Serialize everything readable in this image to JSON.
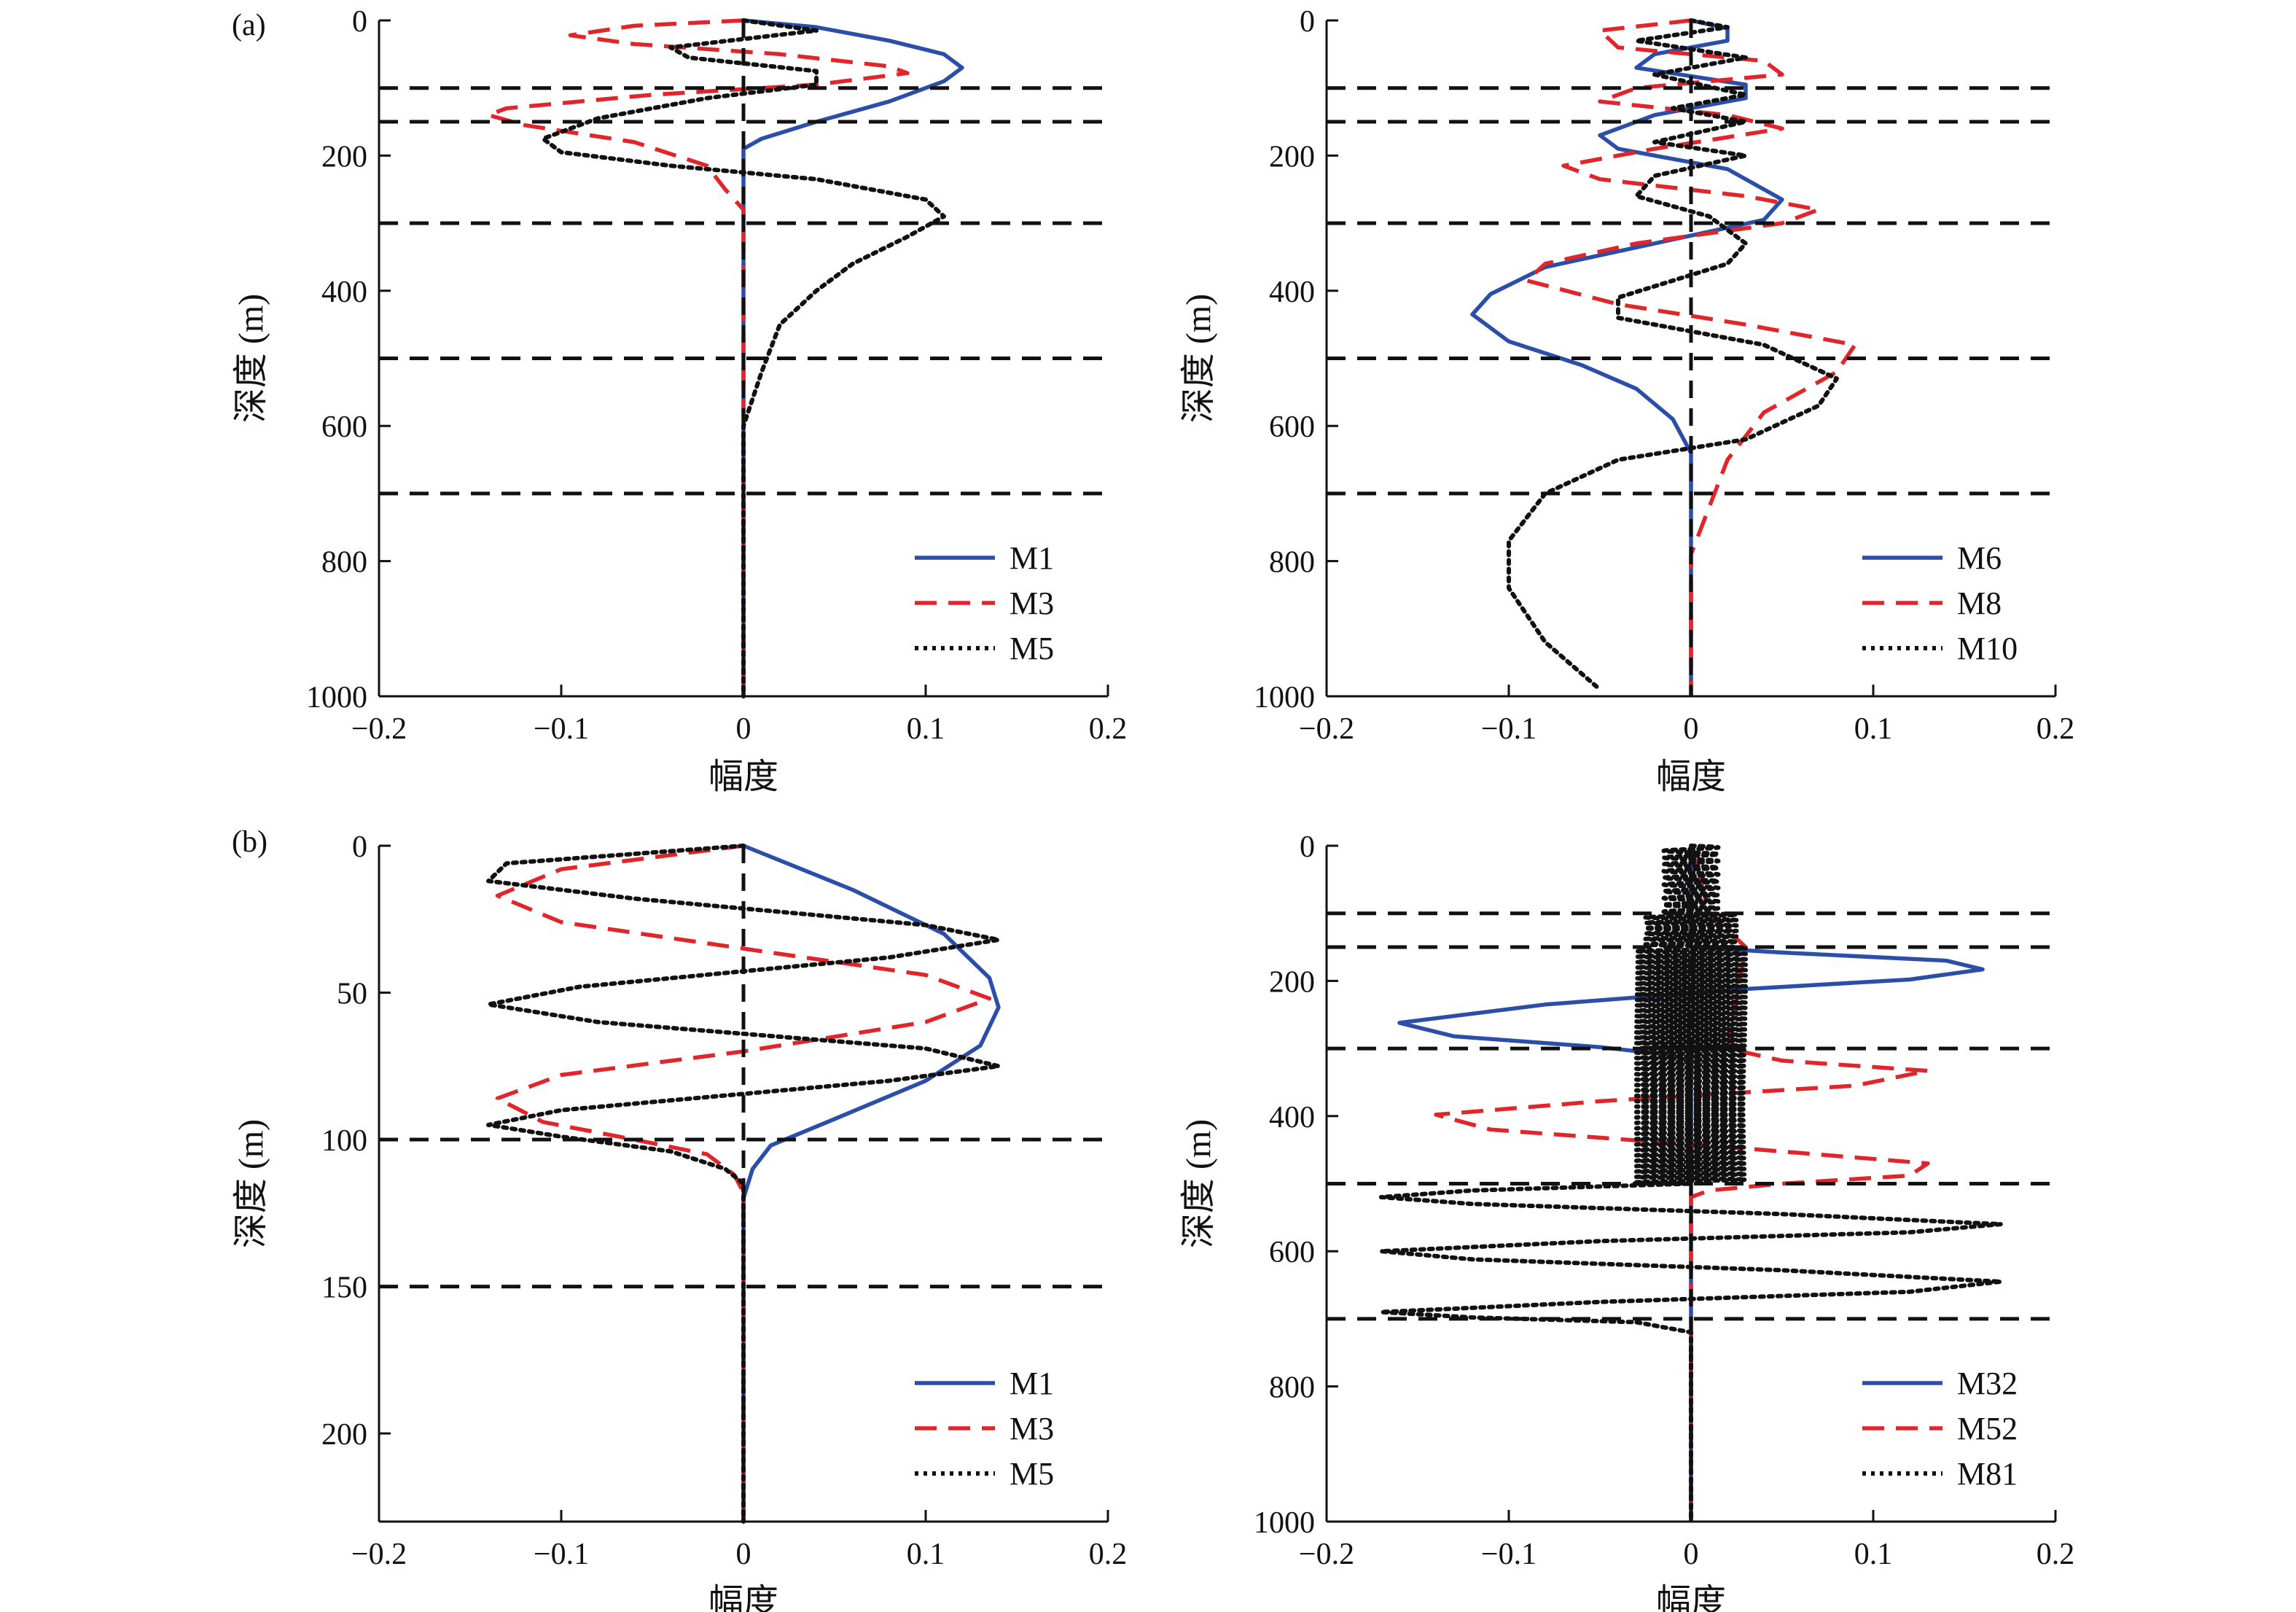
{
  "figure_labels": [
    "(a)",
    "(b)"
  ],
  "colors": {
    "M_solid": "#2b4fa8",
    "M_dashed": "#e0262b",
    "M_dotted": "#111111",
    "boundary": "#111111",
    "axis": "#111111"
  },
  "chart_data": [
    {
      "id": "a-left",
      "type": "line",
      "panel_label": "(a)",
      "xlabel": "幅度",
      "ylabel": "深度 (m)",
      "xlim": [
        -0.2,
        0.2
      ],
      "ylim": [
        0,
        1000
      ],
      "y_inverted": true,
      "xticks": [
        "−0.2",
        "−0.1",
        "0",
        "0.1",
        "0.2"
      ],
      "yticks": [
        "0",
        "200",
        "400",
        "600",
        "800",
        "1000"
      ],
      "boundaries": [
        100,
        150,
        300,
        500,
        700
      ],
      "legend_position": "lower-right",
      "series": [
        {
          "name": "M1",
          "style": "solid",
          "points": [
            [
              0,
              0
            ],
            [
              0.04,
              10
            ],
            [
              0.08,
              30
            ],
            [
              0.11,
              50
            ],
            [
              0.12,
              70
            ],
            [
              0.11,
              90
            ],
            [
              0.08,
              120
            ],
            [
              0.04,
              150
            ],
            [
              0.01,
              175
            ],
            [
              0,
              190
            ],
            [
              0,
              1000
            ]
          ]
        },
        {
          "name": "M3",
          "style": "dashed",
          "points": [
            [
              0,
              0
            ],
            [
              -0.06,
              8
            ],
            [
              -0.095,
              22
            ],
            [
              -0.06,
              35
            ],
            [
              0.02,
              50
            ],
            [
              0.08,
              68
            ],
            [
              0.09,
              78
            ],
            [
              0.04,
              95
            ],
            [
              -0.05,
              110
            ],
            [
              -0.13,
              130
            ],
            [
              -0.14,
              140
            ],
            [
              -0.12,
              155
            ],
            [
              -0.06,
              180
            ],
            [
              -0.02,
              215
            ],
            [
              -0.01,
              250
            ],
            [
              0,
              280
            ],
            [
              0,
              1000
            ]
          ]
        },
        {
          "name": "M5",
          "style": "dotted",
          "points": [
            [
              0,
              0
            ],
            [
              0.04,
              15
            ],
            [
              -0.04,
              40
            ],
            [
              -0.03,
              55
            ],
            [
              0.04,
              75
            ],
            [
              0.04,
              95
            ],
            [
              -0.02,
              115
            ],
            [
              -0.08,
              145
            ],
            [
              -0.11,
              175
            ],
            [
              -0.1,
              195
            ],
            [
              -0.04,
              215
            ],
            [
              0.04,
              235
            ],
            [
              0.1,
              265
            ],
            [
              0.11,
              290
            ],
            [
              0.09,
              320
            ],
            [
              0.06,
              360
            ],
            [
              0.04,
              400
            ],
            [
              0.02,
              450
            ],
            [
              0.01,
              520
            ],
            [
              0,
              600
            ],
            [
              0,
              1000
            ]
          ]
        }
      ]
    },
    {
      "id": "a-right",
      "type": "line",
      "xlabel": "幅度",
      "ylabel": "深度 (m)",
      "xlim": [
        -0.2,
        0.2
      ],
      "ylim": [
        0,
        1000
      ],
      "y_inverted": true,
      "xticks": [
        "−0.2",
        "−0.1",
        "0",
        "0.1",
        "0.2"
      ],
      "yticks": [
        "0",
        "200",
        "400",
        "600",
        "800",
        "1000"
      ],
      "boundaries": [
        100,
        150,
        300,
        500,
        700
      ],
      "legend_position": "lower-right",
      "series": [
        {
          "name": "M6",
          "style": "solid",
          "points": [
            [
              0,
              0
            ],
            [
              0.02,
              12
            ],
            [
              0.02,
              30
            ],
            [
              -0.02,
              50
            ],
            [
              -0.03,
              70
            ],
            [
              0.03,
              95
            ],
            [
              0.03,
              115
            ],
            [
              -0.02,
              140
            ],
            [
              -0.05,
              170
            ],
            [
              -0.04,
              190
            ],
            [
              0.02,
              220
            ],
            [
              0.05,
              265
            ],
            [
              0.04,
              295
            ],
            [
              -0.02,
              330
            ],
            [
              -0.08,
              365
            ],
            [
              -0.11,
              405
            ],
            [
              -0.12,
              435
            ],
            [
              -0.1,
              475
            ],
            [
              -0.06,
              510
            ],
            [
              -0.03,
              545
            ],
            [
              -0.01,
              590
            ],
            [
              0,
              640
            ],
            [
              0,
              1000
            ]
          ]
        },
        {
          "name": "M8",
          "style": "dashed",
          "points": [
            [
              0,
              0
            ],
            [
              -0.05,
              15
            ],
            [
              -0.04,
              40
            ],
            [
              0.04,
              60
            ],
            [
              0.05,
              80
            ],
            [
              -0.03,
              100
            ],
            [
              -0.05,
              120
            ],
            [
              0.02,
              140
            ],
            [
              0.05,
              160
            ],
            [
              -0.02,
              190
            ],
            [
              -0.07,
              215
            ],
            [
              -0.05,
              235
            ],
            [
              0.03,
              260
            ],
            [
              0.07,
              280
            ],
            [
              0.05,
              300
            ],
            [
              -0.03,
              330
            ],
            [
              -0.08,
              360
            ],
            [
              -0.09,
              385
            ],
            [
              -0.04,
              420
            ],
            [
              0.03,
              450
            ],
            [
              0.09,
              480
            ],
            [
              0.08,
              520
            ],
            [
              0.04,
              580
            ],
            [
              0.02,
              650
            ],
            [
              0.01,
              720
            ],
            [
              0,
              790
            ],
            [
              0,
              1000
            ]
          ]
        },
        {
          "name": "M10",
          "style": "dotted",
          "points": [
            [
              0,
              0
            ],
            [
              0.02,
              10
            ],
            [
              -0.03,
              30
            ],
            [
              0.03,
              55
            ],
            [
              -0.02,
              80
            ],
            [
              0.03,
              110
            ],
            [
              -0.01,
              130
            ],
            [
              0.03,
              150
            ],
            [
              -0.02,
              180
            ],
            [
              0.03,
              200
            ],
            [
              -0.02,
              230
            ],
            [
              -0.03,
              260
            ],
            [
              0.01,
              290
            ],
            [
              0.03,
              330
            ],
            [
              0.02,
              360
            ],
            [
              -0.04,
              410
            ],
            [
              -0.04,
              440
            ],
            [
              0.04,
              480
            ],
            [
              0.08,
              530
            ],
            [
              0.07,
              570
            ],
            [
              0.03,
              620
            ],
            [
              -0.04,
              650
            ],
            [
              -0.08,
              700
            ],
            [
              -0.1,
              770
            ],
            [
              -0.1,
              840
            ],
            [
              -0.08,
              920
            ],
            [
              -0.05,
              990
            ]
          ]
        }
      ]
    },
    {
      "id": "b-left",
      "type": "line",
      "panel_label": "(b)",
      "xlabel": "幅度",
      "ylabel": "深度 (m)",
      "xlim": [
        -0.2,
        0.2
      ],
      "ylim": [
        0,
        230
      ],
      "y_inverted": true,
      "xticks": [
        "−0.2",
        "−0.1",
        "0",
        "0.1",
        "0.2"
      ],
      "yticks": [
        "0",
        "50",
        "100",
        "150",
        "200"
      ],
      "boundaries": [
        100,
        150
      ],
      "legend_position": "lower-right",
      "series": [
        {
          "name": "M1",
          "style": "solid",
          "points": [
            [
              0,
              0
            ],
            [
              0.06,
              15
            ],
            [
              0.11,
              30
            ],
            [
              0.135,
              45
            ],
            [
              0.14,
              55
            ],
            [
              0.13,
              68
            ],
            [
              0.1,
              80
            ],
            [
              0.05,
              93
            ],
            [
              0.015,
              102
            ],
            [
              0.005,
              110
            ],
            [
              0,
              120
            ],
            [
              0,
              230
            ]
          ]
        },
        {
          "name": "M3",
          "style": "dashed",
          "points": [
            [
              0,
              0
            ],
            [
              -0.1,
              8
            ],
            [
              -0.135,
              17
            ],
            [
              -0.1,
              26
            ],
            [
              0,
              35
            ],
            [
              0.1,
              44
            ],
            [
              0.135,
              52
            ],
            [
              0.1,
              60
            ],
            [
              0,
              70
            ],
            [
              -0.1,
              78
            ],
            [
              -0.135,
              86
            ],
            [
              -0.11,
              94
            ],
            [
              -0.06,
              100
            ],
            [
              -0.02,
              105
            ],
            [
              -0.005,
              112
            ],
            [
              0,
              118
            ],
            [
              0,
              230
            ]
          ]
        },
        {
          "name": "M5",
          "style": "dotted",
          "points": [
            [
              0,
              0
            ],
            [
              -0.13,
              6
            ],
            [
              -0.14,
              12
            ],
            [
              -0.06,
              18
            ],
            [
              0.1,
              27
            ],
            [
              0.14,
              32
            ],
            [
              0.08,
              38
            ],
            [
              -0.09,
              48
            ],
            [
              -0.14,
              54
            ],
            [
              -0.08,
              60
            ],
            [
              0.1,
              69
            ],
            [
              0.14,
              75
            ],
            [
              0.08,
              80
            ],
            [
              -0.1,
              90
            ],
            [
              -0.14,
              95
            ],
            [
              -0.1,
              99
            ],
            [
              -0.04,
              104
            ],
            [
              -0.01,
              110
            ],
            [
              0,
              115
            ],
            [
              0,
              230
            ]
          ]
        }
      ]
    },
    {
      "id": "b-right",
      "type": "line",
      "xlabel": "幅度",
      "ylabel": "深度 (m)",
      "xlim": [
        -0.2,
        0.2
      ],
      "ylim": [
        0,
        1000
      ],
      "y_inverted": true,
      "xticks": [
        "−0.2",
        "−0.1",
        "0",
        "0.1",
        "0.2"
      ],
      "yticks": [
        "0",
        "200",
        "400",
        "600",
        "800",
        "1000"
      ],
      "boundaries": [
        100,
        150,
        300,
        500,
        700
      ],
      "legend_position": "lower-right",
      "series": [
        {
          "name": "M32",
          "style": "solid",
          "points": [
            [
              0,
              0
            ],
            [
              0,
              150
            ],
            [
              0.05,
              158
            ],
            [
              0.14,
              170
            ],
            [
              0.16,
              183
            ],
            [
              0.12,
              198
            ],
            [
              0.03,
              212
            ],
            [
              -0.08,
              235
            ],
            [
              -0.16,
              262
            ],
            [
              -0.13,
              282
            ],
            [
              -0.05,
              298
            ],
            [
              -0.01,
              310
            ],
            [
              0,
              320
            ],
            [
              0,
              1000
            ]
          ]
        },
        {
          "name": "M52",
          "style": "dashed",
          "points": [
            [
              0,
              0
            ],
            [
              0.01,
              100
            ],
            [
              0.03,
              150
            ],
            [
              0.02,
              300
            ],
            [
              0.05,
              318
            ],
            [
              0.13,
              333
            ],
            [
              0.09,
              355
            ],
            [
              -0.05,
              378
            ],
            [
              -0.14,
              398
            ],
            [
              -0.11,
              420
            ],
            [
              0.03,
              448
            ],
            [
              0.13,
              470
            ],
            [
              0.12,
              488
            ],
            [
              0.05,
              500
            ],
            [
              0.01,
              510
            ],
            [
              0,
              520
            ],
            [
              0,
              1000
            ]
          ]
        },
        {
          "name": "M81",
          "style": "dotted",
          "osc_bands": [
            [
              0,
              100,
              0.015,
              10
            ],
            [
              100,
              150,
              0.025,
              8
            ],
            [
              150,
              300,
              0.03,
              8
            ],
            [
              300,
              500,
              0.03,
              8
            ]
          ],
          "points": [
            [
              0,
              500
            ],
            [
              -0.12,
              510
            ],
            [
              -0.17,
              520
            ],
            [
              -0.12,
              530
            ],
            [
              0.05,
              545
            ],
            [
              0.17,
              560
            ],
            [
              0.12,
              572
            ],
            [
              -0.05,
              585
            ],
            [
              -0.17,
              600
            ],
            [
              -0.12,
              612
            ],
            [
              0.05,
              628
            ],
            [
              0.17,
              645
            ],
            [
              0.12,
              660
            ],
            [
              -0.05,
              675
            ],
            [
              -0.17,
              690
            ],
            [
              -0.12,
              698
            ],
            [
              -0.03,
              705
            ],
            [
              0,
              720
            ],
            [
              0,
              1000
            ]
          ]
        }
      ]
    }
  ]
}
